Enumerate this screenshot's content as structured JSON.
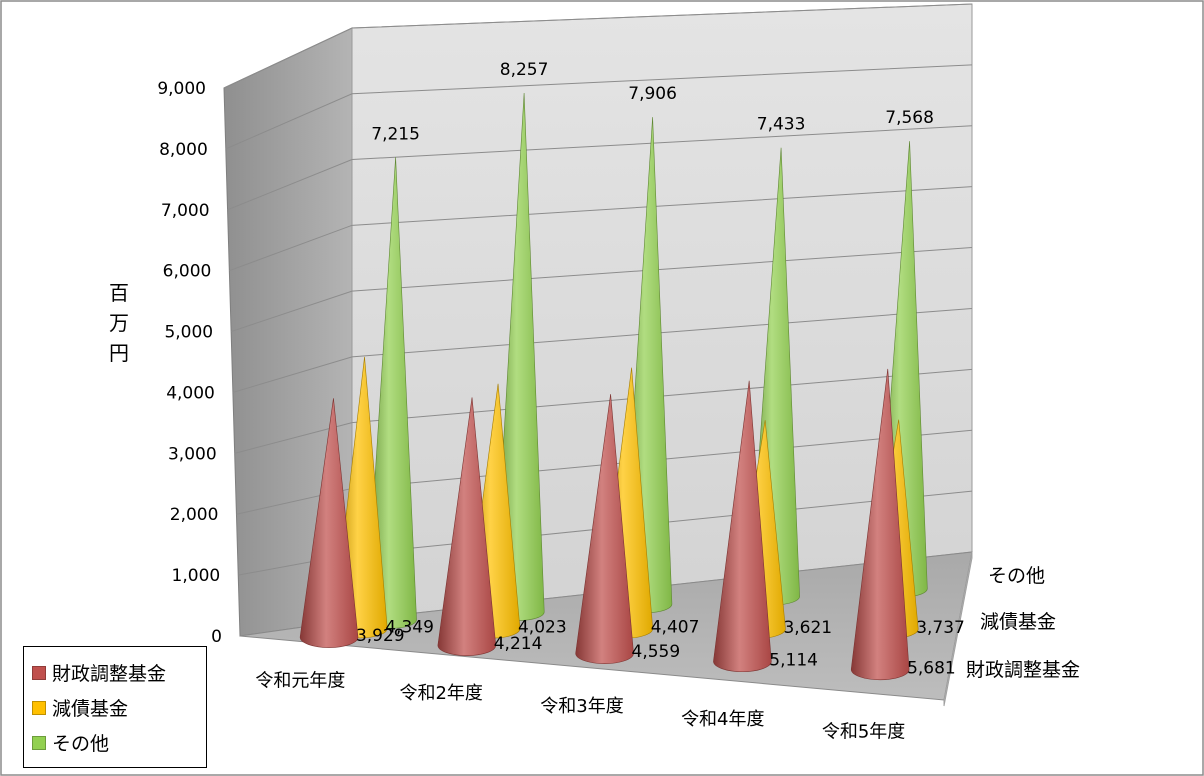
{
  "chart_data": {
    "type": "bar",
    "style": "3d-cone",
    "ylabel": "百万円",
    "ylim": [
      0,
      9000
    ],
    "yticks": [
      0,
      1000,
      2000,
      3000,
      4000,
      5000,
      6000,
      7000,
      8000,
      9000
    ],
    "ytick_labels": [
      "0",
      "1,000",
      "2,000",
      "3,000",
      "4,000",
      "5,000",
      "6,000",
      "7,000",
      "8,000",
      "9,000"
    ],
    "grid": true,
    "legend_position": "bottom-left",
    "categories": [
      "令和元年度",
      "令和2年度",
      "令和3年度",
      "令和4年度",
      "令和5年度"
    ],
    "series": [
      {
        "name": "財政調整基金",
        "color": "#c0504d",
        "values": [
          3929,
          4214,
          4559,
          5114,
          5681
        ],
        "labels": [
          "3,929",
          "4,214",
          "4,559",
          "5,114",
          "5,681"
        ]
      },
      {
        "name": "減債基金",
        "color": "#ffc000",
        "values": [
          4349,
          4023,
          4407,
          3621,
          3737
        ],
        "labels": [
          "4,349",
          "4,023",
          "4,407",
          "3,621",
          "3,737"
        ]
      },
      {
        "name": "その他",
        "color": "#92d050",
        "values": [
          7215,
          8257,
          7906,
          7433,
          7568
        ],
        "labels": [
          "7,215",
          "8,257",
          "7,906",
          "7,433",
          "7,568"
        ]
      }
    ]
  }
}
